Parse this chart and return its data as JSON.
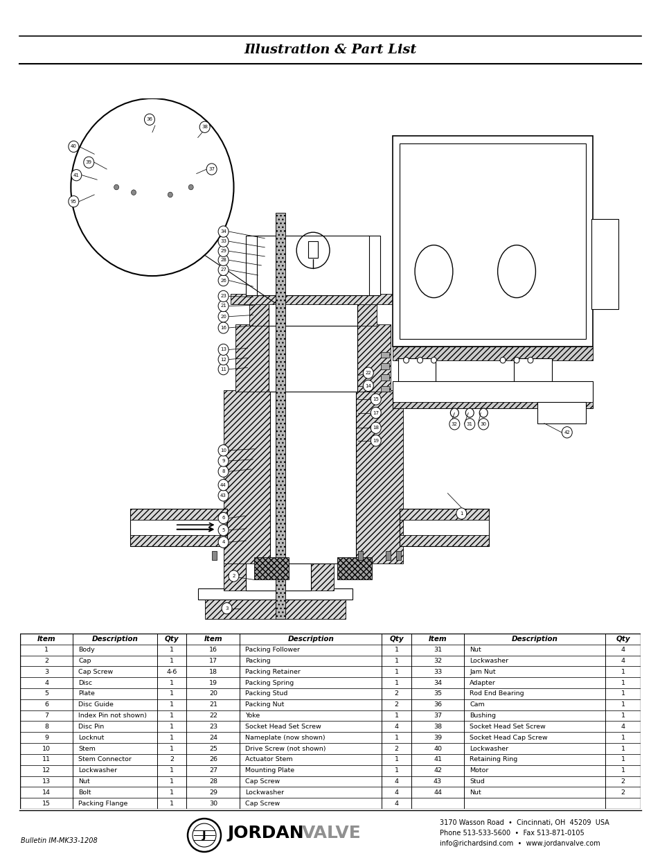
{
  "title": "Illustration & Part List",
  "background_color": "#ffffff",
  "title_fontsize": 14,
  "table_header": [
    "Item",
    "Description",
    "Qty",
    "Item",
    "Description",
    "Qty",
    "Item",
    "Description",
    "Qty"
  ],
  "table_rows": [
    [
      "1",
      "Body",
      "1",
      "16",
      "Packing Follower",
      "1",
      "31",
      "Nut",
      "4"
    ],
    [
      "2",
      "Cap",
      "1",
      "17",
      "Packing",
      "1",
      "32",
      "Lockwasher",
      "4"
    ],
    [
      "3",
      "Cap Screw",
      "4-6",
      "18",
      "Packing Retainer",
      "1",
      "33",
      "Jam Nut",
      "1"
    ],
    [
      "4",
      "Disc",
      "1",
      "19",
      "Packing Spring",
      "1",
      "34",
      "Adapter",
      "1"
    ],
    [
      "5",
      "Plate",
      "1",
      "20",
      "Packing Stud",
      "2",
      "35",
      "Rod End Bearing",
      "1"
    ],
    [
      "6",
      "Disc Guide",
      "1",
      "21",
      "Packing Nut",
      "2",
      "36",
      "Cam",
      "1"
    ],
    [
      "7",
      "Index Pin not shown)",
      "1",
      "22",
      "Yoke",
      "1",
      "37",
      "Bushing",
      "1"
    ],
    [
      "8",
      "Disc Pin",
      "1",
      "23",
      "Socket Head Set Screw",
      "4",
      "38",
      "Socket Head Set Screw",
      "4"
    ],
    [
      "9",
      "Locknut",
      "1",
      "24",
      "Nameplate (now shown)",
      "1",
      "39",
      "Socket Head Cap Screw",
      "1"
    ],
    [
      "10",
      "Stem",
      "1",
      "25",
      "Drive Screw (not shown)",
      "2",
      "40",
      "Lockwasher",
      "1"
    ],
    [
      "11",
      "Stem Connector",
      "2",
      "26",
      "Actuator Stem",
      "1",
      "41",
      "Retaining Ring",
      "1"
    ],
    [
      "12",
      "Lockwasher",
      "1",
      "27",
      "Mounting Plate",
      "1",
      "42",
      "Motor",
      "1"
    ],
    [
      "13",
      "Nut",
      "1",
      "28",
      "Cap Screw",
      "4",
      "43",
      "Stud",
      "2"
    ],
    [
      "14",
      "Bolt",
      "1",
      "29",
      "Lockwasher",
      "4",
      "44",
      "Nut",
      "2"
    ],
    [
      "15",
      "Packing Flange",
      "1",
      "30",
      "Cap Screw",
      "4",
      "",
      "",
      ""
    ]
  ],
  "footer_bulletin": "Bulletin IM-MK33-1208",
  "footer_line1": "3170 Wasson Road  •  Cincinnati, OH  45209  USA",
  "footer_line2": "Phone 513-533-5600  •  Fax 513-871-0105",
  "footer_line3": "info@richardsind.com  •  www.jordanvalve.com",
  "cols": [
    0.0,
    0.06,
    0.155,
    0.188,
    0.248,
    0.408,
    0.441,
    0.501,
    0.66,
    0.7
  ]
}
